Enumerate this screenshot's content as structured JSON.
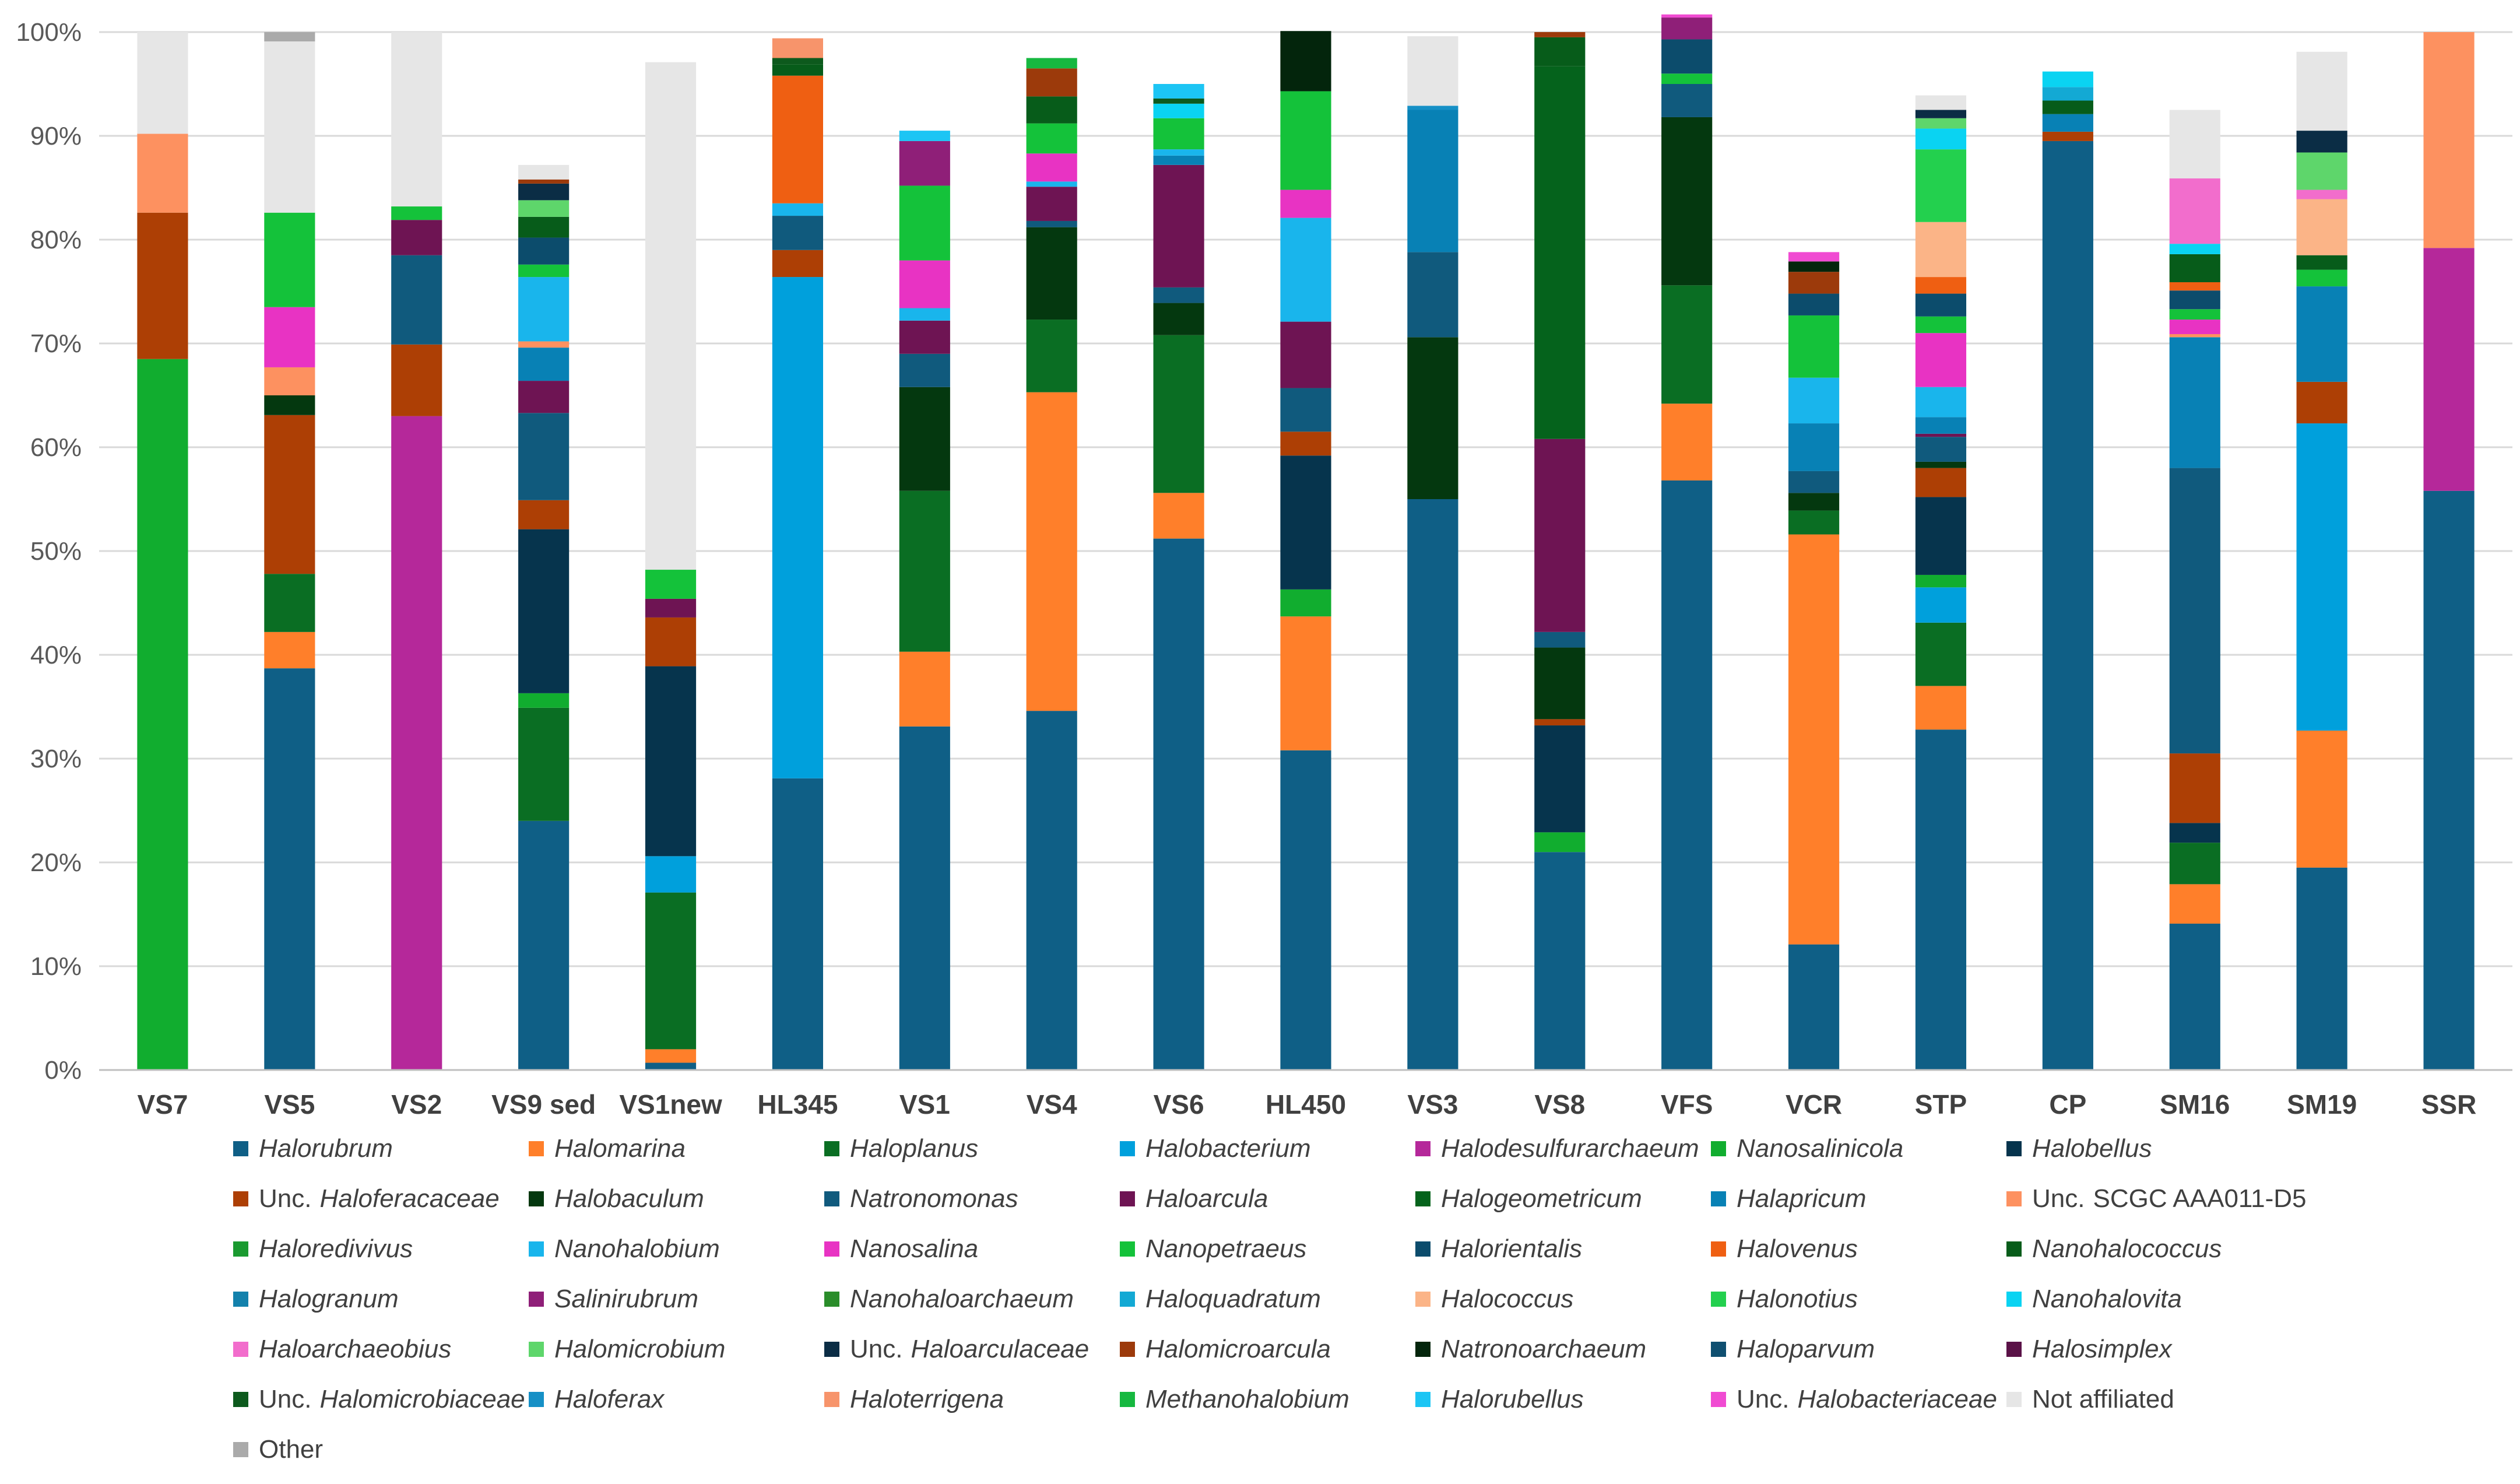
{
  "chart_data": {
    "type": "stacked-bar-100",
    "title": "",
    "xlabel": "",
    "ylabel": "",
    "ylim": [
      0,
      100
    ],
    "ytick_labels": [
      "0%",
      "10%",
      "20%",
      "30%",
      "40%",
      "50%",
      "60%",
      "70%",
      "80%",
      "90%",
      "100%"
    ],
    "legend_position": "bottom",
    "categories": [
      "VS7",
      "VS5",
      "VS2",
      "VS9 sed",
      "VS1new",
      "HL345",
      "VS1",
      "VS4",
      "VS6",
      "HL450",
      "VS3",
      "VS8",
      "VFS",
      "VCR",
      "STP",
      "CP",
      "SM16",
      "SM19",
      "SSR"
    ],
    "series": [
      {
        "name": "Halorubrum",
        "prefix": "",
        "italic": true,
        "color": "#0f5f86",
        "values": [
          0,
          38.7,
          0,
          24,
          0.7,
          28.1,
          33.1,
          34.6,
          51.2,
          30.8,
          55,
          21,
          56.8,
          12.1,
          32.8,
          89.5,
          14.1,
          19.5,
          55.8
        ]
      },
      {
        "name": "Halomarina",
        "prefix": "",
        "italic": true,
        "color": "#ff7f2a",
        "values": [
          0,
          3.5,
          0,
          0,
          1.3,
          0,
          7.2,
          30.7,
          4.4,
          12.9,
          0,
          0,
          7.4,
          39.5,
          4.2,
          0,
          3.8,
          13.2,
          0
        ]
      },
      {
        "name": "Haloplanus",
        "prefix": "",
        "italic": true,
        "color": "#0a6e23",
        "values": [
          0,
          5.6,
          0,
          10.9,
          15.1,
          0,
          15.5,
          7,
          15.2,
          0,
          0,
          0,
          11.4,
          2.3,
          6.1,
          0,
          4,
          0,
          0
        ]
      },
      {
        "name": "Halobacterium",
        "prefix": "",
        "italic": true,
        "color": "#00a0dc",
        "values": [
          0,
          0,
          0,
          0,
          3.5,
          48.3,
          0,
          0,
          0,
          0,
          0,
          0,
          0,
          0,
          3.4,
          0,
          0,
          29.6,
          0
        ]
      },
      {
        "name": "Halodesulfurarchaeum",
        "prefix": "",
        "italic": true,
        "color": "#b5289a",
        "values": [
          0,
          0,
          63,
          0,
          0,
          0,
          0,
          0,
          0,
          0,
          0,
          0,
          0,
          0,
          0,
          0,
          0,
          0,
          23.4
        ]
      },
      {
        "name": "Nanosalinicola",
        "prefix": "",
        "italic": true,
        "color": "#11ad2f",
        "values": [
          68.5,
          0,
          0,
          1.4,
          0,
          0,
          0,
          0,
          0,
          2.6,
          0,
          1.9,
          0,
          0,
          1.2,
          0,
          0,
          0,
          0
        ]
      },
      {
        "name": "Halobellus",
        "prefix": "",
        "italic": true,
        "color": "#06344d",
        "values": [
          0,
          0,
          0,
          15.8,
          18.3,
          0,
          0,
          0,
          0,
          12.9,
          0,
          10.3,
          0,
          0,
          7.5,
          0,
          1.9,
          0,
          0
        ]
      },
      {
        "name": "Haloferacaceae",
        "prefix": "Unc.",
        "italic": true,
        "color": "#ad3f05",
        "values": [
          14.1,
          15.3,
          6.9,
          2.8,
          4.7,
          2.6,
          0,
          0,
          0,
          2.3,
          0,
          0.6,
          0,
          0,
          2.8,
          0.9,
          6.7,
          4,
          0
        ]
      },
      {
        "name": "Halobaculum",
        "prefix": "",
        "italic": true,
        "color": "#04380f",
        "values": [
          0,
          1.9,
          0,
          0,
          0,
          0,
          10,
          8.9,
          3.1,
          0,
          15.6,
          6.9,
          16.2,
          1.7,
          0.6,
          0,
          0,
          0,
          0
        ]
      },
      {
        "name": "Natronomonas",
        "prefix": "",
        "italic": true,
        "color": "#105a7d",
        "values": [
          0,
          0,
          8.6,
          8.4,
          0,
          3.3,
          3.2,
          0.6,
          1.5,
          4.2,
          8.2,
          1.5,
          3.2,
          2.1,
          2.4,
          0,
          27.5,
          0,
          0
        ]
      },
      {
        "name": "Haloarcula",
        "prefix": "",
        "italic": true,
        "color": "#6e1453",
        "values": [
          0,
          0,
          3.4,
          3.1,
          1.8,
          0,
          3.2,
          3.3,
          11.8,
          6.4,
          0,
          18.6,
          0,
          0,
          0.3,
          0,
          0,
          0,
          0
        ]
      },
      {
        "name": "Halogeometricum",
        "prefix": "",
        "italic": true,
        "color": "#05631c",
        "values": [
          0,
          0,
          0,
          0,
          0,
          0,
          0,
          0,
          0,
          0,
          0,
          35.9,
          0,
          0,
          0,
          0,
          0,
          0,
          0
        ]
      },
      {
        "name": "Halapricum",
        "prefix": "",
        "italic": true,
        "color": "#0881b5",
        "values": [
          0,
          0,
          0,
          3.2,
          0,
          0,
          0,
          0,
          0.9,
          0,
          13.7,
          0,
          0,
          4.6,
          1.6,
          1.7,
          12.6,
          9.2,
          0
        ]
      },
      {
        "name": "SCGC AAA011-D5",
        "prefix": "Unc.",
        "italic": false,
        "color": "#fd9160",
        "values": [
          7.6,
          2.7,
          0,
          0.6,
          0,
          0,
          0,
          0,
          0,
          0,
          0,
          0,
          0,
          0,
          0,
          0,
          0.3,
          0,
          20.8
        ]
      },
      {
        "name": "Haloredivivus",
        "prefix": "",
        "italic": true,
        "color": "#1a9a30",
        "values": [
          0,
          0,
          0,
          0,
          0,
          0,
          0,
          0,
          0,
          0,
          0,
          0,
          0,
          0,
          0,
          0,
          0,
          0,
          0
        ]
      },
      {
        "name": "Nanohalobium",
        "prefix": "",
        "italic": true,
        "color": "#19b5ec",
        "values": [
          0,
          0,
          0,
          6.2,
          0,
          1.2,
          1.2,
          0.5,
          0.6,
          10,
          0,
          0,
          0,
          4.4,
          2.9,
          0,
          0,
          0,
          0
        ]
      },
      {
        "name": "Nanosalina",
        "prefix": "",
        "italic": true,
        "color": "#e833c3",
        "values": [
          0,
          5.8,
          0,
          0,
          0,
          0,
          4.6,
          2.7,
          0,
          2.7,
          0,
          0,
          0,
          0,
          5.2,
          0,
          1.4,
          0,
          0
        ]
      },
      {
        "name": "Nanopetraeus",
        "prefix": "",
        "italic": true,
        "color": "#14c23a",
        "values": [
          0,
          9.1,
          1.3,
          1.2,
          2.8,
          0,
          7.2,
          2.9,
          3,
          9.5,
          0,
          0,
          1,
          6,
          1.6,
          0,
          1,
          1.6,
          0
        ]
      },
      {
        "name": "Halorientalis",
        "prefix": "",
        "italic": true,
        "color": "#0c4c6c",
        "values": [
          0,
          0,
          0,
          2.6,
          0,
          0,
          0,
          0,
          0,
          0,
          0,
          0,
          3.3,
          2.1,
          2.2,
          0,
          1.8,
          0,
          0
        ]
      },
      {
        "name": "Halovenus",
        "prefix": "",
        "italic": true,
        "color": "#ef5f12",
        "values": [
          0,
          0,
          0,
          0,
          0,
          12.3,
          0,
          0,
          0,
          0,
          0,
          0,
          0,
          0,
          1.6,
          0,
          0.8,
          0,
          0
        ]
      },
      {
        "name": "Nanohalococcus",
        "prefix": "",
        "italic": true,
        "color": "#075c1a",
        "values": [
          0,
          0,
          0,
          2,
          0,
          1.1,
          0,
          2.6,
          0,
          0,
          0,
          2.8,
          0,
          0,
          0,
          1.3,
          2.7,
          1.4,
          0
        ]
      },
      {
        "name": "Halogranum",
        "prefix": "",
        "italic": true,
        "color": "#1381ac",
        "values": [
          0,
          0,
          0,
          0,
          0,
          0,
          0,
          0,
          0,
          0,
          0,
          0,
          0,
          0,
          0,
          0,
          0,
          0,
          0
        ]
      },
      {
        "name": "Salinirubrum",
        "prefix": "",
        "italic": true,
        "color": "#8f1f78",
        "values": [
          0,
          0,
          0,
          0,
          0,
          0,
          4.3,
          0,
          0,
          0,
          0,
          0,
          2.1,
          0,
          0,
          0,
          0,
          0,
          0
        ]
      },
      {
        "name": "Nanohaloarchaeum",
        "prefix": "",
        "italic": true,
        "color": "#2a8d2a",
        "values": [
          0,
          0,
          0,
          0,
          0,
          0,
          0,
          0,
          0,
          0,
          0,
          0,
          0,
          0,
          0,
          0,
          0,
          0,
          0
        ]
      },
      {
        "name": "Haloquadratum",
        "prefix": "",
        "italic": true,
        "color": "#13a9d4",
        "values": [
          0,
          0,
          0,
          0,
          0,
          0,
          0,
          0,
          0,
          0,
          0,
          0,
          0,
          0,
          0,
          1.3,
          0,
          0,
          0
        ]
      },
      {
        "name": "Halococcus",
        "prefix": "",
        "italic": true,
        "color": "#fbb487",
        "values": [
          0,
          0,
          0,
          0,
          0,
          0,
          0,
          0,
          0,
          0,
          0,
          0,
          0,
          0,
          5.3,
          0,
          0,
          5.4,
          0
        ]
      },
      {
        "name": "Halonotius",
        "prefix": "",
        "italic": true,
        "color": "#23d04e",
        "values": [
          0,
          0,
          0,
          0,
          0,
          0,
          0,
          0,
          0,
          0,
          0,
          0,
          0,
          0,
          7,
          0,
          0,
          0,
          0
        ]
      },
      {
        "name": "Nanohalovita",
        "prefix": "",
        "italic": true,
        "color": "#0ad3f2",
        "values": [
          0,
          0,
          0,
          0,
          0,
          0,
          0,
          0,
          1.4,
          0,
          0,
          0,
          0,
          0,
          2,
          1.5,
          1,
          0,
          0
        ]
      },
      {
        "name": "Haloarchaeobius",
        "prefix": "",
        "italic": true,
        "color": "#f26dcc",
        "values": [
          0,
          0,
          0,
          0,
          0,
          0,
          0,
          0,
          0,
          0,
          0,
          0,
          0,
          0,
          0,
          0,
          6.3,
          0.9,
          0
        ]
      },
      {
        "name": "Halomicrobium",
        "prefix": "",
        "italic": true,
        "color": "#5ed66b",
        "values": [
          0,
          0,
          0,
          1.6,
          0,
          0,
          0,
          0,
          0,
          0,
          0,
          0,
          0,
          0,
          1,
          0,
          0,
          3.6,
          0
        ]
      },
      {
        "name": "Haloarculaceae",
        "prefix": "Unc.",
        "italic": true,
        "color": "#0b2d45",
        "values": [
          0,
          0,
          0,
          1.6,
          0,
          0,
          0,
          0,
          0,
          0,
          0,
          0,
          0,
          0,
          0.8,
          0,
          0,
          2.1,
          0
        ]
      },
      {
        "name": "Halomicroarcula",
        "prefix": "",
        "italic": true,
        "color": "#9c3a0b",
        "values": [
          0,
          0,
          0,
          0.4,
          0,
          0,
          0,
          2.7,
          0,
          0,
          0,
          0.5,
          0,
          2.1,
          0,
          0,
          0,
          0,
          0
        ]
      },
      {
        "name": "Natronoarchaeum",
        "prefix": "",
        "italic": true,
        "color": "#03250c",
        "values": [
          0,
          0,
          0,
          0,
          0,
          0,
          0,
          0,
          0,
          5.8,
          0,
          0,
          0,
          1,
          0,
          0,
          0,
          0,
          0
        ]
      },
      {
        "name": "Haloparvum",
        "prefix": "",
        "italic": true,
        "color": "#0f4f70",
        "values": [
          0,
          0,
          0,
          0,
          0,
          0,
          0,
          0,
          0,
          0,
          0,
          0,
          0,
          0,
          0,
          0,
          0,
          0,
          0
        ]
      },
      {
        "name": "Halosimplex",
        "prefix": "",
        "italic": true,
        "color": "#5a1247",
        "values": [
          0,
          0,
          0,
          0,
          0,
          0,
          0,
          0,
          0,
          0,
          0,
          0,
          0,
          0,
          0,
          0,
          0,
          0,
          0
        ]
      },
      {
        "name": "Halomicrobiaceae",
        "prefix": "Unc.",
        "italic": true,
        "color": "#0d5a1d",
        "values": [
          0,
          0,
          0,
          0,
          0,
          0.6,
          0,
          0,
          0.5,
          0,
          0,
          0,
          0,
          0,
          0,
          0,
          0,
          0,
          0
        ]
      },
      {
        "name": "Haloferax",
        "prefix": "",
        "italic": true,
        "color": "#1690c6",
        "values": [
          0,
          0,
          0,
          0,
          0,
          0,
          0,
          0,
          0,
          0,
          0.4,
          0,
          0,
          0,
          0,
          0,
          0,
          0,
          0
        ]
      },
      {
        "name": "Haloterrigena",
        "prefix": "",
        "italic": true,
        "color": "#f7946b",
        "values": [
          0,
          0,
          0,
          0,
          0,
          1.9,
          0,
          0,
          0,
          0,
          0,
          0,
          0,
          0,
          0,
          0,
          0,
          0,
          0
        ]
      },
      {
        "name": "Methanohalobium",
        "prefix": "",
        "italic": true,
        "color": "#16b840",
        "values": [
          0,
          0,
          0,
          0,
          0,
          0,
          0,
          1,
          0,
          0,
          0,
          0,
          0,
          0,
          0,
          0,
          0,
          0,
          0
        ]
      },
      {
        "name": "Halorubellus",
        "prefix": "",
        "italic": true,
        "color": "#1cc5f4",
        "values": [
          0,
          0,
          0,
          0,
          0,
          0,
          1,
          0,
          1.4,
          0,
          0,
          0,
          0,
          0,
          0,
          0,
          0,
          0,
          0
        ]
      },
      {
        "name": "Halobacteriaceae",
        "prefix": "Unc.",
        "italic": true,
        "color": "#f04bd2",
        "values": [
          0,
          0,
          0,
          0,
          0,
          0,
          0,
          0,
          0,
          0,
          0,
          0,
          0.3,
          0.9,
          0,
          0,
          0,
          0,
          0
        ]
      },
      {
        "name": "Not affiliated",
        "prefix": "",
        "italic": false,
        "color": "#e6e6e6",
        "values": [
          9.8,
          16.5,
          16.8,
          1.4,
          48.9,
          0,
          0,
          0,
          0,
          0,
          6.7,
          0,
          0,
          0,
          1.4,
          0,
          6.6,
          7.6,
          0
        ]
      },
      {
        "name": "Other",
        "prefix": "",
        "italic": false,
        "color": "#aaaaaa",
        "values": [
          0,
          0.9,
          0,
          0,
          0,
          0,
          0,
          0,
          0,
          0,
          0,
          0,
          0,
          0,
          0,
          0,
          0,
          0,
          0
        ]
      }
    ]
  }
}
